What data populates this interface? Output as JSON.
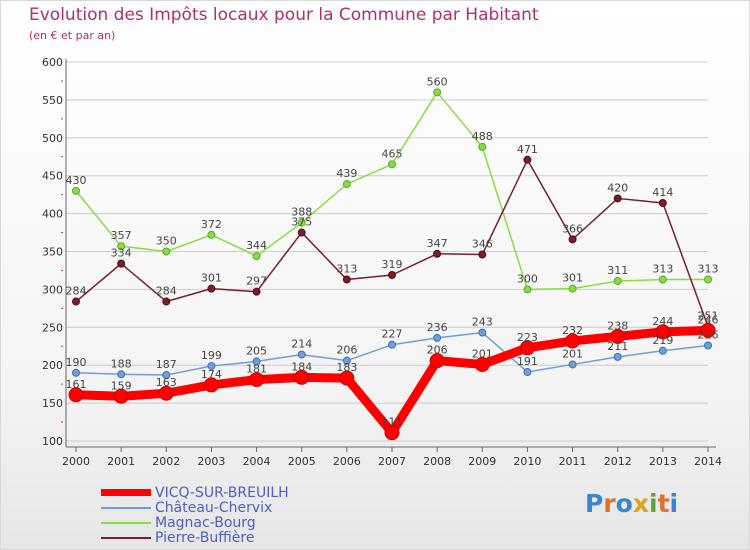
{
  "header": {
    "title": "Evolution des Impôts locaux pour la Commune par Habitant",
    "subtitle": "(en € et par an)"
  },
  "logo": {
    "text": "Proxiti"
  },
  "colors": {
    "vicq": "#ff0000",
    "chateau": "#6f9fd6",
    "magnac": "#88dd44",
    "pierre": "#7a1e2a",
    "axis": "#666666",
    "grid": "#cccccc"
  },
  "chart_data": {
    "type": "line",
    "title": "Evolution des Impôts locaux pour la Commune par Habitant",
    "subtitle": "(en € et par an)",
    "xlabel": "",
    "ylabel": "",
    "ylim": [
      100,
      600
    ],
    "yticks": [
      100,
      150,
      200,
      250,
      300,
      350,
      400,
      450,
      500,
      550,
      600
    ],
    "grid": true,
    "categories": [
      "2000",
      "2001",
      "2002",
      "2003",
      "2004",
      "2005",
      "2006",
      "2007",
      "2008",
      "2009",
      "2010",
      "2011",
      "2012",
      "2013",
      "2014"
    ],
    "series": [
      {
        "key": "chateau",
        "name": "Château-Chervix",
        "values": [
          190,
          188,
          187,
          199,
          205,
          214,
          206,
          227,
          236,
          243,
          191,
          201,
          211,
          219,
          226
        ],
        "labels": [
          "190",
          "188",
          "187",
          "199",
          "205",
          "214",
          "206",
          "227",
          "236",
          "243",
          "191",
          "201",
          "211",
          "219",
          "226"
        ]
      },
      {
        "key": "magnac",
        "name": "Magnac-Bourg",
        "values": [
          430,
          357,
          350,
          372,
          344,
          388,
          439,
          465,
          560,
          488,
          300,
          301,
          311,
          313,
          313
        ],
        "labels": [
          "430",
          "357",
          "350",
          "372",
          "344",
          "388",
          "439",
          "465",
          "560",
          "488",
          "300",
          "301",
          "311",
          "313",
          "313"
        ]
      },
      {
        "key": "pierre",
        "name": "Pierre-Buffière",
        "values": [
          284,
          334,
          284,
          301,
          297,
          375,
          313,
          319,
          347,
          346,
          471,
          366,
          420,
          414,
          251
        ],
        "labels": [
          "284",
          "334",
          "284",
          "301",
          "297",
          "375",
          "313",
          "319",
          "347",
          "346",
          "471",
          "366",
          "420",
          "414",
          "251"
        ]
      },
      {
        "key": "vicq",
        "name": "VICQ-SUR-BREUILH",
        "values": [
          161,
          159,
          163,
          174,
          181,
          184,
          183,
          111,
          206,
          201,
          223,
          232,
          238,
          244,
          246
        ],
        "labels": [
          "161",
          "159",
          "163",
          "174",
          "181",
          "184",
          "183",
          "111",
          "206",
          "201",
          "223",
          "232",
          "238",
          "244",
          "246"
        ]
      }
    ],
    "legend": [
      "VICQ-SUR-BREUILH",
      "Château-Chervix",
      "Magnac-Bourg",
      "Pierre-Buffière"
    ]
  }
}
